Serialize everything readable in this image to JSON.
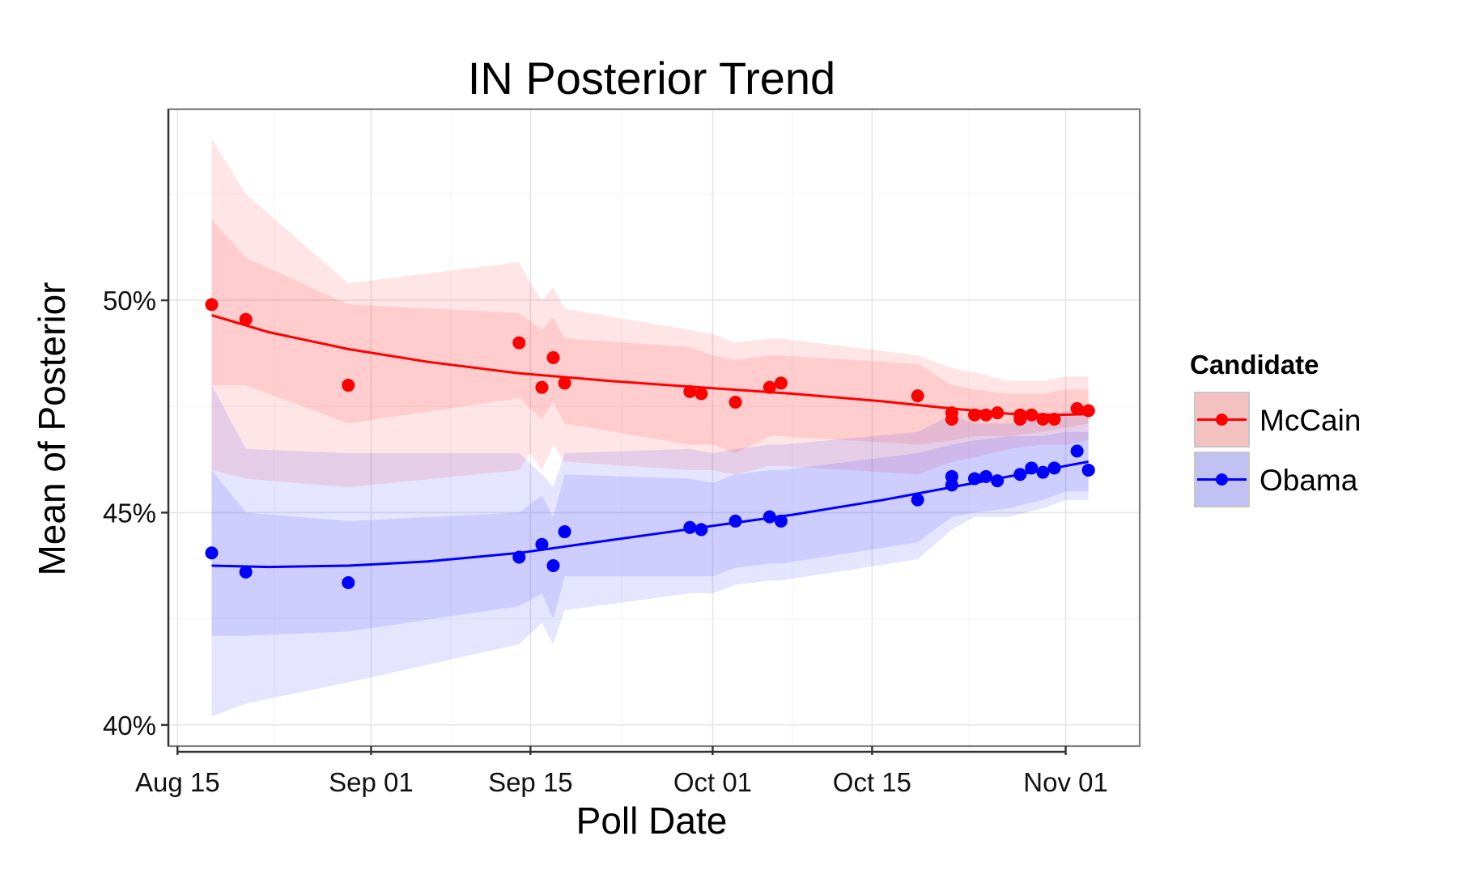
{
  "chart_data": {
    "type": "line",
    "title": "IN  Posterior Trend",
    "xlabel": "Poll Date",
    "ylabel": "Mean of Posterior",
    "x_ticks": [
      {
        "day": 0,
        "label": "Aug 15"
      },
      {
        "day": 17,
        "label": "Sep 01"
      },
      {
        "day": 31,
        "label": "Sep 15"
      },
      {
        "day": 47,
        "label": "Oct 01"
      },
      {
        "day": 61,
        "label": "Oct 15"
      },
      {
        "day": 78,
        "label": "Nov 01"
      }
    ],
    "y_ticks": [
      {
        "value": 40,
        "label": "40%"
      },
      {
        "value": 45,
        "label": "45%"
      },
      {
        "value": 50,
        "label": "50%"
      }
    ],
    "xlim_days": [
      -0.8,
      84.5
    ],
    "ylim": [
      39.5,
      54.5
    ],
    "grid": true,
    "legend": {
      "title": "Candidate",
      "placement": "right",
      "entries": [
        "McCain",
        "Obama"
      ]
    },
    "series": [
      {
        "name": "McCain",
        "color": "#ff0000",
        "band_color": "#ff0000",
        "points": [
          [
            3,
            49.9
          ],
          [
            6,
            49.55
          ],
          [
            15,
            48.0
          ],
          [
            30,
            49.0
          ],
          [
            32,
            47.95
          ],
          [
            33,
            48.65
          ],
          [
            34,
            48.05
          ],
          [
            45,
            47.85
          ],
          [
            46,
            47.8
          ],
          [
            49,
            47.6
          ],
          [
            52,
            47.95
          ],
          [
            53,
            48.05
          ],
          [
            65,
            47.75
          ],
          [
            68,
            47.35
          ],
          [
            68,
            47.2
          ],
          [
            70,
            47.3
          ],
          [
            71,
            47.3
          ],
          [
            72,
            47.35
          ],
          [
            74,
            47.3
          ],
          [
            74,
            47.2
          ],
          [
            75,
            47.3
          ],
          [
            76,
            47.2
          ],
          [
            77,
            47.2
          ],
          [
            79,
            47.45
          ],
          [
            80,
            47.4
          ]
        ],
        "trend": [
          [
            3,
            49.65
          ],
          [
            8,
            49.25
          ],
          [
            15,
            48.85
          ],
          [
            22,
            48.55
          ],
          [
            30,
            48.28
          ],
          [
            38,
            48.1
          ],
          [
            46,
            47.95
          ],
          [
            54,
            47.8
          ],
          [
            62,
            47.62
          ],
          [
            68,
            47.45
          ],
          [
            73,
            47.33
          ],
          [
            77,
            47.3
          ],
          [
            80,
            47.32
          ]
        ],
        "band_outer": [
          [
            3,
            46.0,
            53.8
          ],
          [
            6,
            45.8,
            52.5
          ],
          [
            15,
            45.6,
            50.4
          ],
          [
            30,
            46.0,
            50.9
          ],
          [
            31,
            46.4,
            50.4
          ],
          [
            32,
            46.0,
            50.0
          ],
          [
            33,
            46.6,
            50.3
          ],
          [
            34,
            46.2,
            49.8
          ],
          [
            45,
            46.0,
            49.3
          ],
          [
            47,
            46.0,
            49.2
          ],
          [
            49,
            45.9,
            49.0
          ],
          [
            52,
            46.1,
            49.1
          ],
          [
            53,
            46.1,
            49.1
          ],
          [
            65,
            45.9,
            48.7
          ],
          [
            68,
            46.2,
            48.4
          ],
          [
            70,
            46.3,
            48.3
          ],
          [
            73,
            46.5,
            48.1
          ],
          [
            76,
            46.6,
            48.1
          ],
          [
            78,
            46.6,
            48.2
          ],
          [
            80,
            46.7,
            48.2
          ]
        ],
        "band_inner": [
          [
            3,
            48.0,
            51.9
          ],
          [
            6,
            48.0,
            51.0
          ],
          [
            15,
            47.1,
            49.9
          ],
          [
            30,
            47.7,
            49.7
          ],
          [
            32,
            47.2,
            49.3
          ],
          [
            33,
            47.6,
            49.6
          ],
          [
            34,
            47.1,
            49.1
          ],
          [
            45,
            46.6,
            48.9
          ],
          [
            47,
            46.6,
            48.7
          ],
          [
            49,
            46.4,
            48.6
          ],
          [
            52,
            46.8,
            48.7
          ],
          [
            53,
            46.8,
            48.7
          ],
          [
            65,
            46.6,
            48.5
          ],
          [
            68,
            46.7,
            48.0
          ],
          [
            70,
            46.8,
            47.9
          ],
          [
            73,
            46.8,
            47.8
          ],
          [
            76,
            46.9,
            47.8
          ],
          [
            78,
            47.0,
            47.9
          ],
          [
            80,
            47.1,
            47.9
          ]
        ]
      },
      {
        "name": "Obama",
        "color": "#0000ff",
        "band_color": "#0000ff",
        "points": [
          [
            3,
            44.05
          ],
          [
            6,
            43.6
          ],
          [
            15,
            43.35
          ],
          [
            30,
            43.95
          ],
          [
            32,
            44.25
          ],
          [
            33,
            43.75
          ],
          [
            34,
            44.55
          ],
          [
            45,
            44.65
          ],
          [
            46,
            44.6
          ],
          [
            49,
            44.8
          ],
          [
            52,
            44.9
          ],
          [
            53,
            44.8
          ],
          [
            65,
            45.3
          ],
          [
            68,
            45.85
          ],
          [
            68,
            45.65
          ],
          [
            70,
            45.8
          ],
          [
            71,
            45.85
          ],
          [
            72,
            45.75
          ],
          [
            74,
            45.9
          ],
          [
            75,
            46.05
          ],
          [
            76,
            45.95
          ],
          [
            77,
            46.05
          ],
          [
            79,
            46.45
          ],
          [
            80,
            46.0
          ]
        ],
        "trend": [
          [
            3,
            43.75
          ],
          [
            8,
            43.72
          ],
          [
            15,
            43.75
          ],
          [
            22,
            43.85
          ],
          [
            30,
            44.05
          ],
          [
            38,
            44.35
          ],
          [
            46,
            44.65
          ],
          [
            54,
            44.95
          ],
          [
            62,
            45.3
          ],
          [
            68,
            45.6
          ],
          [
            73,
            45.85
          ],
          [
            77,
            46.05
          ],
          [
            80,
            46.2
          ]
        ],
        "band_outer": [
          [
            3,
            40.2,
            48.0
          ],
          [
            6,
            40.5,
            46.5
          ],
          [
            15,
            41.0,
            46.4
          ],
          [
            30,
            41.9,
            46.4
          ],
          [
            32,
            42.4,
            45.9
          ],
          [
            33,
            41.9,
            45.6
          ],
          [
            34,
            42.7,
            46.4
          ],
          [
            45,
            43.1,
            46.5
          ],
          [
            47,
            43.1,
            46.4
          ],
          [
            49,
            43.3,
            46.5
          ],
          [
            52,
            43.4,
            46.6
          ],
          [
            53,
            43.4,
            46.6
          ],
          [
            65,
            43.9,
            46.9
          ],
          [
            68,
            44.6,
            47.3
          ],
          [
            70,
            44.9,
            47.1
          ],
          [
            73,
            44.9,
            47.1
          ],
          [
            76,
            45.1,
            47.2
          ],
          [
            78,
            45.3,
            47.4
          ],
          [
            80,
            45.3,
            47.3
          ]
        ],
        "band_inner": [
          [
            3,
            42.1,
            46.0
          ],
          [
            6,
            42.1,
            45.0
          ],
          [
            15,
            42.2,
            44.8
          ],
          [
            30,
            42.8,
            45.0
          ],
          [
            32,
            43.1,
            45.4
          ],
          [
            33,
            42.5,
            44.9
          ],
          [
            34,
            43.5,
            45.9
          ],
          [
            45,
            43.5,
            45.8
          ],
          [
            47,
            43.5,
            45.7
          ],
          [
            49,
            43.7,
            45.9
          ],
          [
            52,
            43.8,
            46.0
          ],
          [
            53,
            43.8,
            46.0
          ],
          [
            65,
            44.3,
            46.4
          ],
          [
            68,
            44.9,
            46.6
          ],
          [
            70,
            45.0,
            46.7
          ],
          [
            73,
            45.1,
            46.8
          ],
          [
            76,
            45.3,
            46.8
          ],
          [
            78,
            45.5,
            46.9
          ],
          [
            80,
            45.5,
            46.9
          ]
        ]
      }
    ]
  }
}
